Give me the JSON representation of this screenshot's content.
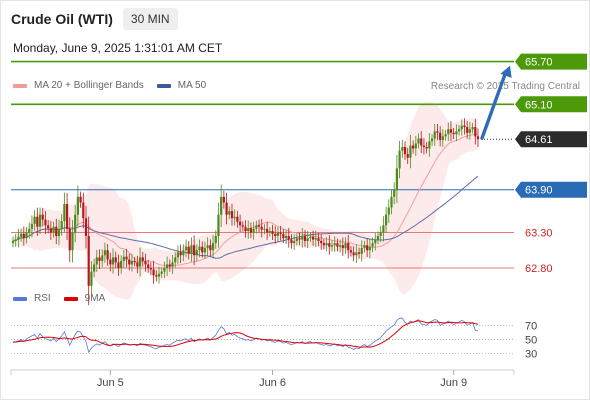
{
  "header": {
    "title": "Crude Oil (WTI)",
    "timeframe": "30 MIN",
    "datetime": "Monday, June 9, 2025 1:31:01 AM CET"
  },
  "legend": {
    "ma_bb": "MA 20 + Bollinger Bands",
    "ma50": "MA 50",
    "credit": "Research © 2025 Trading Central"
  },
  "rsi_legend": {
    "rsi": "RSI",
    "ma9": "9MA"
  },
  "colors": {
    "up_candle": "#4a8b1c",
    "down_candle": "#b5171d",
    "bollinger_fill": "#fde6e6",
    "ma20": "#f0a0a0",
    "ma50": "#5f6fa8",
    "resistance": "#4c9a0a",
    "pivot": "#2a6bb5",
    "support": "#e87878",
    "current_price": "#2c2c2c",
    "rsi": "#5577dd",
    "rsi_ma": "#dd0000",
    "arrow": "#2f6bb8"
  },
  "chart_data": [
    {
      "type": "candlestick",
      "title": "Crude Oil (WTI)",
      "interval": "30 MIN",
      "ylim": [
        62.0,
        66.2
      ],
      "x_ticks": [
        "Jun 5",
        "Jun 6",
        "Jun 9"
      ],
      "levels": [
        {
          "value": 65.7,
          "label": "65.70",
          "kind": "resistance"
        },
        {
          "value": 65.1,
          "label": "65.10",
          "kind": "resistance"
        },
        {
          "value": 64.61,
          "label": "64.61",
          "kind": "current"
        },
        {
          "value": 63.9,
          "label": "63.90",
          "kind": "pivot"
        },
        {
          "value": 63.3,
          "label": "63.30",
          "kind": "support"
        },
        {
          "value": 62.8,
          "label": "62.80",
          "kind": "support"
        }
      ],
      "forecast": {
        "from": 64.61,
        "to": 65.7,
        "direction": "up"
      },
      "series": {
        "close": [
          63.18,
          63.2,
          63.24,
          63.28,
          63.22,
          63.3,
          63.35,
          63.42,
          63.52,
          63.38,
          63.55,
          63.48,
          63.4,
          63.36,
          63.3,
          63.38,
          63.25,
          63.35,
          63.46,
          63.7,
          63.35,
          63.05,
          63.3,
          63.55,
          63.8,
          63.72,
          63.5,
          63.25,
          62.55,
          62.75,
          62.85,
          62.95,
          62.9,
          62.98,
          63.05,
          62.92,
          62.85,
          62.95,
          62.88,
          62.8,
          62.9,
          62.96,
          62.92,
          62.85,
          62.9,
          62.88,
          62.82,
          62.95,
          62.9,
          62.85,
          62.8,
          62.78,
          62.7,
          62.68,
          62.72,
          62.75,
          62.8,
          62.85,
          62.82,
          62.88,
          62.95,
          63.02,
          62.98,
          63.05,
          63.1,
          63.0,
          63.12,
          62.98,
          63.05,
          63.1,
          63.02,
          63.08,
          63.12,
          63.05,
          63.15,
          63.25,
          63.55,
          63.8,
          63.72,
          63.55,
          63.6,
          63.5,
          63.52,
          63.45,
          63.4,
          63.38,
          63.32,
          63.36,
          63.3,
          63.35,
          63.4,
          63.38,
          63.34,
          63.35,
          63.3,
          63.32,
          63.28,
          63.25,
          63.3,
          63.28,
          63.22,
          63.25,
          63.2,
          63.15,
          63.18,
          63.22,
          63.2,
          63.25,
          63.18,
          63.22,
          63.24,
          63.2,
          63.22,
          63.18,
          63.15,
          63.12,
          63.15,
          63.1,
          63.12,
          63.15,
          63.1,
          63.12,
          63.08,
          63.15,
          63.05,
          63.02,
          62.98,
          63.02,
          63.0,
          63.08,
          63.12,
          63.05,
          63.1,
          63.15,
          63.2,
          63.25,
          63.3,
          63.4,
          63.55,
          63.65,
          63.8,
          63.9,
          64.2,
          64.45,
          64.5,
          64.4,
          64.35,
          64.52,
          64.48,
          64.55,
          64.62,
          64.52,
          64.5,
          64.48,
          64.58,
          64.62,
          64.72,
          64.7,
          64.6,
          64.65,
          64.68,
          64.75,
          64.7,
          64.68,
          64.72,
          64.75,
          64.8,
          64.78,
          64.7,
          64.75,
          64.78,
          64.65,
          64.61
        ],
        "rsi": [
          46,
          47,
          48,
          50,
          47,
          51,
          53,
          55,
          57,
          52,
          58,
          54,
          51,
          50,
          48,
          52,
          47,
          51,
          55,
          61,
          51,
          42,
          50,
          57,
          62,
          60,
          54,
          47,
          32,
          38,
          41,
          44,
          42,
          45,
          47,
          43,
          41,
          44,
          42,
          40,
          43,
          45,
          44,
          42,
          43,
          43,
          41,
          45,
          43,
          42,
          41,
          40,
          38,
          37,
          39,
          40,
          42,
          43,
          42,
          45,
          47,
          49,
          48,
          50,
          51,
          48,
          52,
          47,
          49,
          51,
          49,
          50,
          52,
          49,
          53,
          56,
          63,
          68,
          65,
          58,
          60,
          56,
          57,
          54,
          52,
          51,
          49,
          50,
          48,
          50,
          52,
          51,
          49,
          50,
          48,
          49,
          47,
          46,
          48,
          47,
          45,
          46,
          44,
          43,
          44,
          46,
          45,
          47,
          44,
          46,
          47,
          45,
          46,
          44,
          43,
          42,
          43,
          41,
          42,
          44,
          41,
          42,
          40,
          43,
          39,
          38,
          36,
          38,
          37,
          41,
          43,
          40,
          42,
          45,
          48,
          50,
          53,
          57,
          62,
          65,
          68,
          70,
          77,
          80,
          80,
          74,
          72,
          76,
          74,
          76,
          78,
          72,
          71,
          70,
          74,
          76,
          78,
          77,
          70,
          72,
          73,
          76,
          73,
          71,
          73,
          75,
          77,
          75,
          70,
          72,
          74,
          63,
          62
        ]
      },
      "rsi_ticks": [
        70,
        50,
        30
      ]
    }
  ]
}
